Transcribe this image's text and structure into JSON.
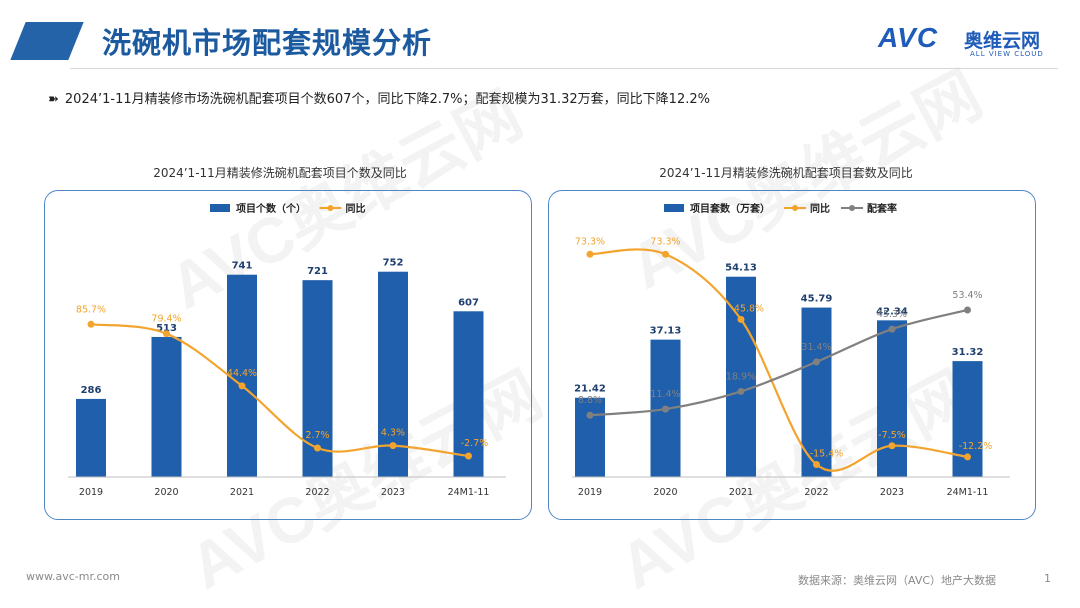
{
  "header": {
    "title": "洗碗机市场配套规模分析",
    "logo_main": "AVC",
    "logo_cn": "奥维云网",
    "logo_en": "ALL VIEW CLOUD"
  },
  "headline": {
    "arrow": "➽",
    "text": "2024’1-11月精装修市场洗碗机配套项目个数607个，同比下降2.7%；配套规模为31.32万套，同比下降12.2%"
  },
  "footer": {
    "url": "www.avc-mr.com",
    "source": "数据来源：奥维云网（AVC）地产大数据",
    "page": "1"
  },
  "watermark": "AVC奥维云网",
  "colors": {
    "bar": "#1f5fab",
    "yoy": "#f3a42e",
    "rate": "#808080",
    "title": "#1c5aa0",
    "frame": "#4f86c6"
  },
  "chart_data": [
    {
      "type": "bar",
      "title": "2024’1-11月精装修洗碗机配套项目个数及同比",
      "categories": [
        "2019",
        "2020",
        "2021",
        "2022",
        "2023",
        "24M1-11"
      ],
      "series": [
        {
          "name": "项目个数（个）",
          "kind": "bar",
          "values": [
            286,
            513,
            741,
            721,
            752,
            607
          ],
          "labels": [
            "286",
            "513",
            "741",
            "721",
            "752",
            "607"
          ]
        },
        {
          "name": "同比",
          "kind": "line",
          "values": [
            85.7,
            79.4,
            44.4,
            2.7,
            4.3,
            -2.7
          ],
          "labels": [
            "85.7%",
            "79.4%",
            "44.4%",
            "2.7%",
            "4.3%",
            "-2.7%"
          ]
        }
      ],
      "legend": "top-left",
      "grid": false
    },
    {
      "type": "bar",
      "title": "2024’1-11月精装修洗碗机配套项目套数及同比",
      "categories": [
        "2019",
        "2020",
        "2021",
        "2022",
        "2023",
        "24M1-11"
      ],
      "series": [
        {
          "name": "项目套数（万套）",
          "kind": "bar",
          "values": [
            21.42,
            37.13,
            54.13,
            45.79,
            42.34,
            31.32
          ],
          "labels": [
            "21.42",
            "37.13",
            "54.13",
            "45.79",
            "42.34",
            "31.32"
          ]
        },
        {
          "name": "同比",
          "kind": "line",
          "values": [
            73.3,
            73.3,
            45.8,
            -15.4,
            -7.5,
            -12.2
          ],
          "labels": [
            "73.3%",
            "73.3%",
            "45.8%",
            "-15.4%",
            "-7.5%",
            "-12.2%"
          ]
        },
        {
          "name": "配套率",
          "kind": "line",
          "values": [
            8.8,
            11.4,
            18.9,
            31.4,
            45.3,
            53.4
          ],
          "labels": [
            "8.8%",
            "11.4%",
            "18.9%",
            "31.4%",
            "45.3%",
            "53.4%"
          ]
        }
      ],
      "legend": "top-left",
      "grid": false
    }
  ]
}
